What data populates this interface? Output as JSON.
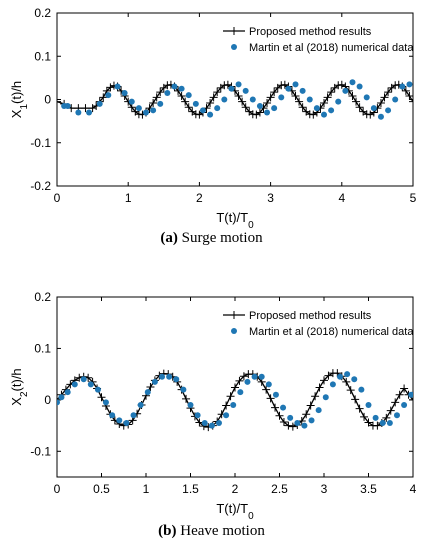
{
  "captions": [
    {
      "tag": "(a)",
      "text": "Surge motion"
    },
    {
      "tag": "(b)",
      "text": "Heave motion"
    }
  ],
  "chart_data": [
    {
      "type": "line",
      "xlabel": "T(t)/T",
      "xlabel_sub": "0",
      "ylabel": "X",
      "ylabel_sub": "1",
      "ylabel_suffix": "(t)/h",
      "xlim": [
        0,
        5
      ],
      "ylim": [
        -0.2,
        0.2
      ],
      "xticks": [
        0,
        1,
        2,
        3,
        4,
        5
      ],
      "xtick_labels": [
        "0",
        "1",
        "2",
        "3",
        "4",
        "5"
      ],
      "yticks": [
        -0.2,
        -0.1,
        0,
        0.1,
        0.2
      ],
      "ytick_labels": [
        "-0.2",
        "-0.1",
        "0",
        "0.1",
        "0.2"
      ],
      "legend_position": "top-right",
      "series": [
        {
          "name": "Proposed method results",
          "style": "line-plus",
          "color": "#000000",
          "x": [
            0,
            0.1,
            0.2,
            0.3,
            0.4,
            0.5,
            0.55,
            0.6,
            0.65,
            0.7,
            0.75,
            0.8,
            0.85,
            0.9,
            0.95,
            1.0,
            1.05,
            1.1,
            1.15,
            1.2,
            1.25,
            1.3,
            1.35,
            1.4,
            1.45,
            1.5,
            1.55,
            1.6,
            1.65,
            1.7,
            1.75,
            1.8,
            1.85,
            1.9,
            1.95,
            2.0,
            2.05,
            2.1,
            2.15,
            2.2,
            2.25,
            2.3,
            2.35,
            2.4,
            2.45,
            2.5,
            2.55,
            2.6,
            2.65,
            2.7,
            2.75,
            2.8,
            2.85,
            2.9,
            2.95,
            3.0,
            3.05,
            3.1,
            3.15,
            3.2,
            3.25,
            3.3,
            3.35,
            3.4,
            3.45,
            3.5,
            3.55,
            3.6,
            3.65,
            3.7,
            3.75,
            3.8,
            3.85,
            3.9,
            3.95,
            4.0,
            4.05,
            4.1,
            4.15,
            4.2,
            4.25,
            4.3,
            4.35,
            4.4,
            4.45,
            4.5,
            4.55,
            4.6,
            4.65,
            4.7,
            4.75,
            4.8,
            4.85,
            4.9,
            4.95,
            5.0
          ],
          "y": [
            -0.005,
            -0.01,
            -0.02,
            -0.02,
            -0.02,
            -0.02,
            -0.015,
            -0.005,
            0.005,
            0.02,
            0.028,
            0.032,
            0.03,
            0.02,
            0.008,
            -0.005,
            -0.018,
            -0.028,
            -0.034,
            -0.035,
            -0.03,
            -0.02,
            -0.008,
            0.005,
            0.017,
            0.027,
            0.033,
            0.034,
            0.03,
            0.02,
            0.008,
            -0.005,
            -0.018,
            -0.028,
            -0.034,
            -0.035,
            -0.03,
            -0.02,
            -0.008,
            0.005,
            0.017,
            0.027,
            0.033,
            0.034,
            0.03,
            0.02,
            0.008,
            -0.005,
            -0.018,
            -0.028,
            -0.034,
            -0.035,
            -0.03,
            -0.02,
            -0.008,
            0.005,
            0.017,
            0.027,
            0.033,
            0.034,
            0.03,
            0.02,
            0.008,
            -0.005,
            -0.018,
            -0.028,
            -0.034,
            -0.035,
            -0.03,
            -0.02,
            -0.008,
            0.005,
            0.017,
            0.027,
            0.033,
            0.034,
            0.03,
            0.02,
            0.008,
            -0.005,
            -0.018,
            -0.028,
            -0.034,
            -0.035,
            -0.03,
            -0.02,
            -0.008,
            0.005,
            0.017,
            0.027,
            0.033,
            0.034,
            0.03,
            0.02,
            0.008,
            -0.005
          ]
        },
        {
          "name": "Martin et al (2018) numerical data",
          "style": "dots",
          "color": "#1f77b4",
          "x": [
            0.1,
            0.15,
            0.3,
            0.45,
            0.6,
            0.72,
            0.85,
            0.95,
            1.05,
            1.15,
            1.25,
            1.35,
            1.45,
            1.55,
            1.65,
            1.75,
            1.85,
            1.95,
            2.05,
            2.15,
            2.25,
            2.35,
            2.45,
            2.55,
            2.65,
            2.75,
            2.85,
            2.95,
            3.05,
            3.15,
            3.25,
            3.35,
            3.45,
            3.55,
            3.65,
            3.75,
            3.85,
            3.95,
            4.05,
            4.15,
            4.25,
            4.35,
            4.45,
            4.55,
            4.65,
            4.75,
            4.85,
            4.95
          ],
          "y": [
            -0.015,
            -0.015,
            -0.03,
            -0.03,
            -0.01,
            0.01,
            0.03,
            0.015,
            -0.005,
            -0.02,
            -0.03,
            -0.025,
            -0.01,
            0.015,
            0.03,
            0.025,
            0.01,
            -0.01,
            -0.025,
            -0.035,
            -0.02,
            0.0,
            0.025,
            0.035,
            0.02,
            0.0,
            -0.015,
            -0.03,
            -0.02,
            0.005,
            0.025,
            0.035,
            0.02,
            0.0,
            -0.02,
            -0.035,
            -0.025,
            -0.005,
            0.02,
            0.04,
            0.03,
            0.005,
            -0.02,
            -0.04,
            -0.025,
            0.0,
            0.03,
            0.035
          ]
        }
      ]
    },
    {
      "type": "line",
      "xlabel": "T(t)/T",
      "xlabel_sub": "0",
      "ylabel": "X",
      "ylabel_sub": "2",
      "ylabel_suffix": "(t)/h",
      "xlim": [
        0,
        4
      ],
      "ylim": [
        -0.15,
        0.2
      ],
      "xticks": [
        0,
        0.5,
        1,
        1.5,
        2,
        2.5,
        3,
        3.5,
        4
      ],
      "xtick_labels": [
        "0",
        "0.5",
        "1",
        "1.5",
        "2",
        "2.5",
        "3",
        "3.5",
        "4"
      ],
      "yticks": [
        -0.1,
        0,
        0.1,
        0.2
      ],
      "ytick_labels": [
        "-0.1",
        "0",
        "0.1",
        "0.2"
      ],
      "legend_position": "top-right",
      "series": [
        {
          "name": "Proposed method results",
          "style": "line-plus",
          "color": "#000000",
          "x": [
            0,
            0.05,
            0.1,
            0.15,
            0.2,
            0.25,
            0.3,
            0.35,
            0.4,
            0.45,
            0.5,
            0.55,
            0.6,
            0.65,
            0.7,
            0.75,
            0.8,
            0.85,
            0.9,
            0.95,
            1.0,
            1.05,
            1.1,
            1.15,
            1.2,
            1.25,
            1.3,
            1.35,
            1.4,
            1.45,
            1.5,
            1.55,
            1.6,
            1.65,
            1.7,
            1.75,
            1.8,
            1.85,
            1.9,
            1.95,
            2.0,
            2.05,
            2.1,
            2.15,
            2.2,
            2.25,
            2.3,
            2.35,
            2.4,
            2.45,
            2.5,
            2.55,
            2.6,
            2.65,
            2.7,
            2.75,
            2.8,
            2.85,
            2.9,
            2.95,
            3.0,
            3.05,
            3.1,
            3.15,
            3.2,
            3.25,
            3.3,
            3.35,
            3.4,
            3.45,
            3.5,
            3.55,
            3.6,
            3.65,
            3.7,
            3.75,
            3.8,
            3.85,
            3.9,
            3.95,
            4.0
          ],
          "y": [
            0.0,
            0.01,
            0.02,
            0.03,
            0.038,
            0.043,
            0.045,
            0.043,
            0.035,
            0.022,
            0.005,
            -0.012,
            -0.028,
            -0.04,
            -0.047,
            -0.05,
            -0.048,
            -0.04,
            -0.027,
            -0.01,
            0.008,
            0.025,
            0.038,
            0.047,
            0.051,
            0.05,
            0.045,
            0.035,
            0.02,
            0.002,
            -0.016,
            -0.032,
            -0.044,
            -0.051,
            -0.053,
            -0.05,
            -0.042,
            -0.028,
            -0.011,
            0.007,
            0.024,
            0.037,
            0.046,
            0.05,
            0.05,
            0.045,
            0.035,
            0.02,
            0.003,
            -0.015,
            -0.031,
            -0.043,
            -0.05,
            -0.052,
            -0.049,
            -0.041,
            -0.028,
            -0.011,
            0.007,
            0.024,
            0.038,
            0.047,
            0.052,
            0.052,
            0.046,
            0.035,
            0.019,
            0.001,
            -0.017,
            -0.033,
            -0.044,
            -0.05,
            -0.05,
            -0.045,
            -0.035,
            -0.021,
            -0.005,
            0.01,
            0.022,
            0.01,
            0.0
          ]
        },
        {
          "name": "Martin et al (2018) numerical data",
          "style": "dots",
          "color": "#1f77b4",
          "x": [
            0.0,
            0.05,
            0.12,
            0.2,
            0.3,
            0.38,
            0.46,
            0.55,
            0.62,
            0.7,
            0.78,
            0.86,
            0.94,
            1.02,
            1.1,
            1.18,
            1.26,
            1.34,
            1.42,
            1.5,
            1.58,
            1.66,
            1.74,
            1.82,
            1.9,
            1.98,
            2.06,
            2.14,
            2.22,
            2.3,
            2.38,
            2.46,
            2.54,
            2.62,
            2.7,
            2.78,
            2.86,
            2.94,
            3.02,
            3.1,
            3.18,
            3.26,
            3.34,
            3.42,
            3.5,
            3.58,
            3.66,
            3.74,
            3.82,
            3.9,
            3.98
          ],
          "y": [
            -0.005,
            0.005,
            0.015,
            0.03,
            0.04,
            0.03,
            0.02,
            -0.005,
            -0.03,
            -0.04,
            -0.045,
            -0.03,
            -0.01,
            0.015,
            0.035,
            0.045,
            0.045,
            0.04,
            0.02,
            -0.01,
            -0.03,
            -0.045,
            -0.05,
            -0.045,
            -0.03,
            -0.01,
            0.015,
            0.035,
            0.045,
            0.045,
            0.03,
            0.01,
            -0.015,
            -0.035,
            -0.045,
            -0.05,
            -0.04,
            -0.02,
            0.005,
            0.03,
            0.045,
            0.05,
            0.04,
            0.02,
            -0.01,
            -0.035,
            -0.045,
            -0.045,
            -0.03,
            -0.01,
            0.01
          ]
        }
      ]
    }
  ]
}
